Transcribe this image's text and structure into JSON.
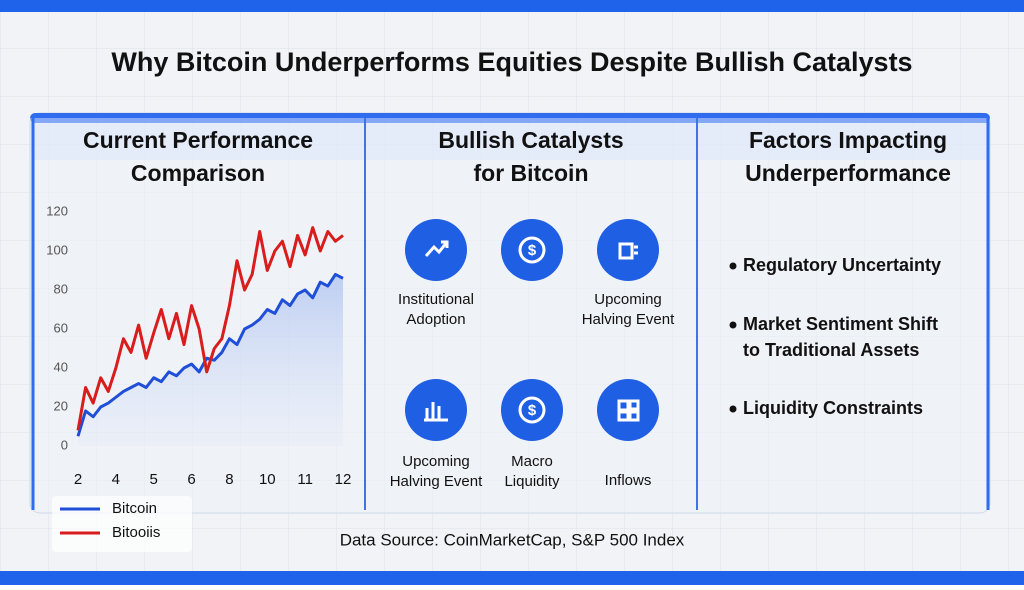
{
  "title": "Why Bitcoin Underperforms Equities Despite Bullish Catalysts",
  "panels": [
    {
      "heading": [
        "Current Performance",
        "Comparison"
      ]
    },
    {
      "heading": [
        "Bullish Catalysts",
        "for Bitcoin"
      ],
      "items": [
        [
          "Institutional",
          "Adoption"
        ],
        null,
        [
          "Upcoming",
          "Halving Event"
        ],
        [
          "Upcoming",
          "Halving Event"
        ],
        [
          "Macro",
          "Liquidity"
        ],
        [
          "Inflows"
        ]
      ]
    },
    {
      "heading": [
        "Factors Impacting",
        "Underperformance"
      ],
      "items": [
        [
          "Regulatory Uncertainty"
        ],
        [
          "Market Sentiment Shift",
          "to Traditional Assets"
        ],
        [
          "Liquidity Constraints"
        ]
      ]
    }
  ],
  "source": "Data Source: CoinMarketCap, S&P 500 Index",
  "chart_data": {
    "type": "line",
    "categories": [
      "2",
      null,
      null,
      null,
      null,
      "4",
      null,
      null,
      null,
      null,
      "5",
      null,
      null,
      null,
      null,
      "6",
      null,
      null,
      null,
      null,
      "8",
      null,
      null,
      null,
      null,
      "10",
      null,
      null,
      null,
      null,
      "11",
      null,
      null,
      null,
      null,
      "12"
    ],
    "series": [
      {
        "name": "Bitcoin",
        "color": "#1f4fd8",
        "values": [
          5,
          18,
          15,
          20,
          22,
          25,
          28,
          30,
          32,
          30,
          35,
          33,
          38,
          36,
          40,
          42,
          38,
          45,
          44,
          48,
          55,
          52,
          60,
          62,
          65,
          70,
          68,
          75,
          72,
          78,
          80,
          76,
          84,
          82,
          88,
          86
        ]
      },
      {
        "name": "Bitooiis",
        "color": "#d91c1c",
        "values": [
          8,
          30,
          22,
          35,
          28,
          40,
          55,
          48,
          62,
          45,
          58,
          70,
          55,
          68,
          52,
          72,
          60,
          38,
          50,
          55,
          72,
          95,
          80,
          88,
          110,
          90,
          100,
          105,
          92,
          108,
          98,
          112,
          100,
          110,
          105,
          108
        ]
      }
    ],
    "ylim": [
      0,
      120
    ],
    "yticks": [
      0,
      20,
      40,
      60,
      80,
      100,
      120
    ],
    "grid": false
  }
}
